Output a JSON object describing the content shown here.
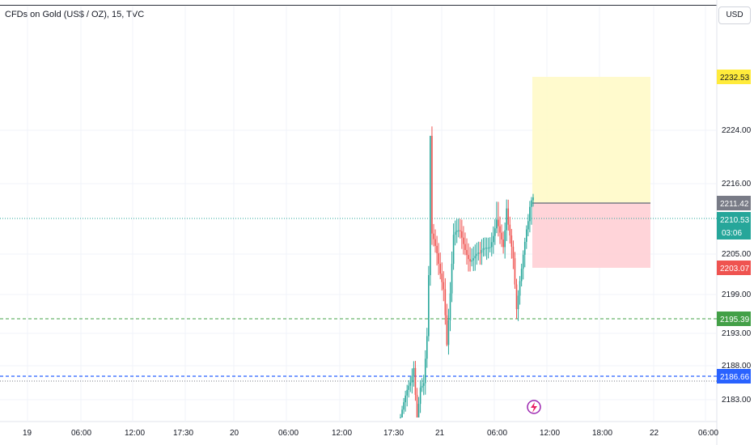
{
  "header": {
    "title": "CFDs on Gold (US$ / OZ), 15, TVC"
  },
  "currency_button": {
    "label": "USD"
  },
  "price_axis": {
    "tick_labels": [
      "2224.00",
      "2216.00",
      "2205.00",
      "2199.00",
      "2193.00",
      "2188.00",
      "2183.00"
    ]
  },
  "time_axis": {
    "tick_labels": [
      "19",
      "06:00",
      "12:00",
      "17:30",
      "20",
      "06:00",
      "12:00",
      "17:30",
      "21",
      "06:00",
      "12:00",
      "18:00",
      "22",
      "06:00"
    ]
  },
  "tags": {
    "target": "2232.53",
    "ref_price": "2211.42",
    "last_price": "2210.53",
    "countdown": "03:06",
    "stop": "2203.07",
    "green_line": "2195.39",
    "blue_line": "2186.66"
  },
  "colors": {
    "up": "#26a69a",
    "down": "#ef5350",
    "profit_zone": "#fff9c4",
    "loss_zone": "#ffcdd2",
    "green_line": "#43a047",
    "blue_line": "#2962ff",
    "target_tag": "#ffeb3b"
  },
  "chart_data": {
    "type": "candlestick",
    "instrument": "CFDs on Gold (US$ / OZ)",
    "interval": "15",
    "source": "TVC",
    "currency": "USD",
    "price_ticks": [
      2224.0,
      2216.0,
      2205.0,
      2199.0,
      2193.0,
      2188.0,
      2183.0
    ],
    "horizontal_lines": [
      {
        "price": 2195.39,
        "style": "dashed",
        "color": "green"
      },
      {
        "price": 2186.66,
        "style": "dashed",
        "color": "blue"
      }
    ],
    "position": {
      "entry": 2211.42,
      "target": 2232.53,
      "stop": 2203.07
    },
    "last_price": 2210.53,
    "countdown": "03:06"
  }
}
